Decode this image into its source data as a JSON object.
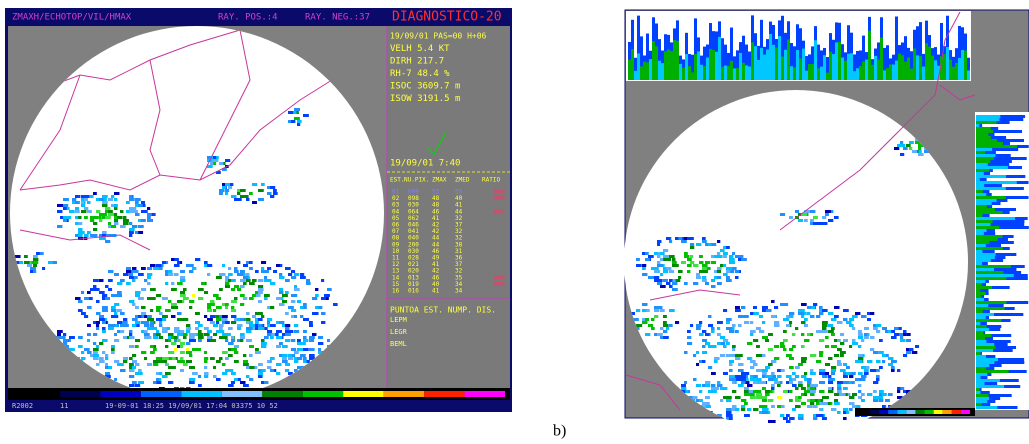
{
  "left_panel": {
    "header": {
      "product": "ZMAXH/ECHOTOP/VIL/HMAX",
      "rays_positive": "RAY. POS.:4",
      "rays_negative": "RAY. NEG.:37",
      "title": "DIAGNOSTICO-20"
    },
    "info": [
      "19/09/01 PAS=00 H+06",
      "VELH 5.4 KT",
      "DIRH 217.7",
      "RH-7 48.4 %",
      "ISOC 3609.7 m",
      "ISOW 3191.5 m"
    ],
    "time": "19/09/01 7:40",
    "table": {
      "columns": [
        "EST.",
        "NU.PIX.",
        "ZMAX",
        "ZMED",
        "RATIO"
      ],
      "rows": [
        [
          "01",
          "009",
          "53",
          "55",
          "000"
        ],
        [
          "02",
          "098",
          "48",
          "40",
          "000"
        ],
        [
          "03",
          "030",
          "48",
          "41"
        ],
        [
          "04",
          "064",
          "46",
          "44",
          "002"
        ],
        [
          "05",
          "062",
          "41",
          "32"
        ],
        [
          "06",
          "046",
          "42",
          "37"
        ],
        [
          "07",
          "041",
          "42",
          "32"
        ],
        [
          "08",
          "040",
          "44",
          "32"
        ],
        [
          "09",
          "200",
          "44",
          "38"
        ],
        [
          "10",
          "030",
          "46",
          "31"
        ],
        [
          "11",
          "028",
          "49",
          "36"
        ],
        [
          "12",
          "021",
          "41",
          "37"
        ],
        [
          "13",
          "020",
          "42",
          "32"
        ],
        [
          "14",
          "013",
          "46",
          "35",
          "000"
        ],
        [
          "15",
          "019",
          "40",
          "34",
          "000"
        ],
        [
          "16",
          "016",
          "41",
          "34"
        ]
      ]
    },
    "footer_header": "PUNTOA EST. NUMP. DIS.",
    "footer_labels": [
      "LEPM",
      "LEGR",
      "BEML"
    ],
    "status_bar": [
      "R2002",
      "11",
      "19-09-01 18:25 19/09/01 17:04 03375 10 52"
    ]
  },
  "caption": "b)"
}
